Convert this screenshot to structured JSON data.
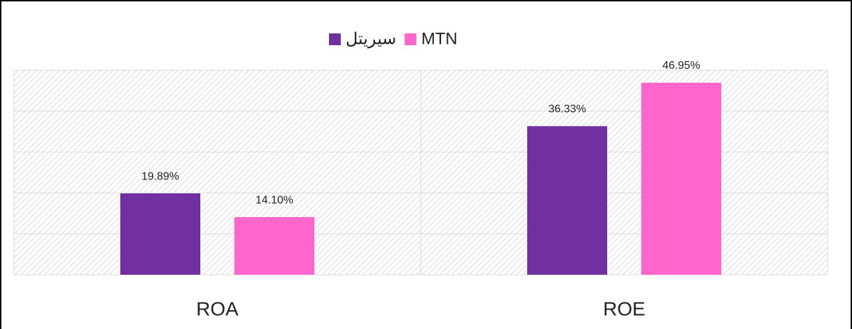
{
  "chart_data": {
    "type": "bar",
    "categories": [
      "ROA",
      "ROE"
    ],
    "series": [
      {
        "name": "سيريتل",
        "color": "#7030a0",
        "values": [
          19.89,
          36.33
        ],
        "value_labels": [
          "19.89%",
          "36.33%"
        ]
      },
      {
        "name": "MTN",
        "color": "#ff66cc",
        "values": [
          14.1,
          46.95
        ],
        "value_labels": [
          "14.10%",
          "46.95%"
        ]
      }
    ],
    "ylim": [
      0,
      50
    ],
    "yticks": [
      0,
      10,
      20,
      30,
      40,
      50
    ],
    "grid": true,
    "legend": "top"
  }
}
